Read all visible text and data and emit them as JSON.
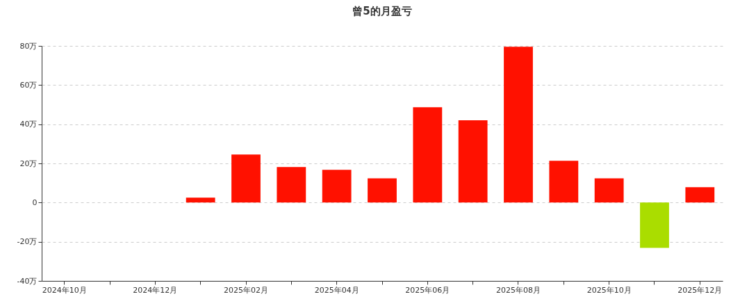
{
  "chart_data": {
    "type": "bar",
    "title": "曾5的月盈亏",
    "categories": [
      "2024年10月",
      null,
      "2024年12月",
      null,
      "2025年02月",
      null,
      "2025年04月",
      null,
      "2025年06月",
      null,
      "2025年08月",
      null,
      "2025年10月",
      null,
      "2025年12月"
    ],
    "values": [
      0,
      0,
      0,
      2.5,
      24.5,
      18.1,
      16.7,
      12.4,
      48.7,
      42,
      79.6,
      21.3,
      12.4,
      -23.1,
      7.8
    ],
    "colors": [
      "#ff1100",
      "#ff1100",
      "#ff1100",
      "#ff1100",
      "#ff1100",
      "#ff1100",
      "#ff1100",
      "#ff1100",
      "#ff1100",
      "#ff1100",
      "#ff1100",
      "#ff1100",
      "#ff1100",
      "#aadd00",
      "#ff1100"
    ],
    "ylim": [
      -40,
      80
    ],
    "yticks": [
      {
        "value": -40,
        "label": "-40万"
      },
      {
        "value": -20,
        "label": "-20万"
      },
      {
        "value": 0,
        "label": "0"
      },
      {
        "value": 20,
        "label": "20万"
      },
      {
        "value": 40,
        "label": "40万"
      },
      {
        "value": 60,
        "label": "60万"
      },
      {
        "value": 80,
        "label": "80万"
      }
    ],
    "grid": "y"
  }
}
